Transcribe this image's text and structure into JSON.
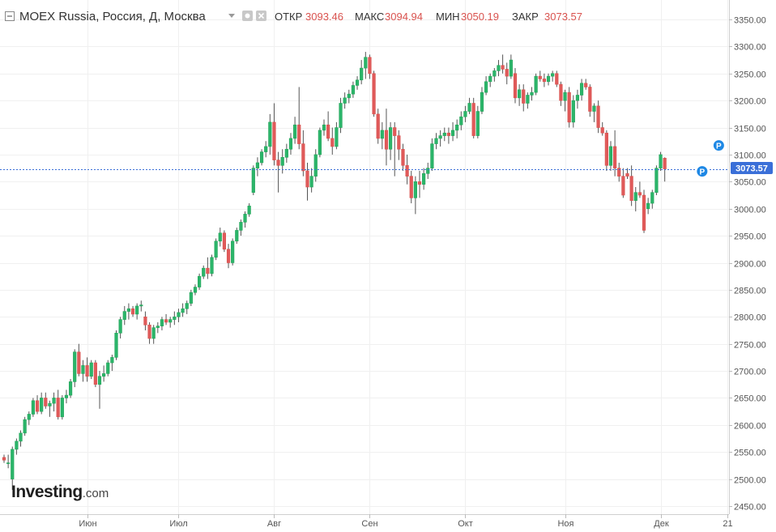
{
  "header": {
    "symbol": "MOEX Russia, Россия, Д, Москва",
    "ohlc": [
      {
        "label": "ОТКР",
        "value": "3093.46"
      },
      {
        "label": "МАКС",
        "value": "3094.94"
      },
      {
        "label": "МИН",
        "value": "3050.19"
      },
      {
        "label": "ЗАКР",
        "value": "3073.57"
      }
    ]
  },
  "logo": {
    "main": "Investing",
    "suffix": ".com"
  },
  "last_price_label": "3073.57",
  "marker_letter": "P",
  "colors": {
    "up": "#26a65b",
    "down": "#d9534f",
    "up_fill": "#2bb56a",
    "down_fill": "#e05a5a",
    "last_line": "#3a6fd8",
    "grid": "#f0f0f0",
    "axis_text": "#555555",
    "marker": "#1e88e5"
  },
  "chart_data": {
    "type": "candlestick",
    "ylim": [
      2440,
      3370
    ],
    "y_ticks": [
      "3350.00",
      "3300.00",
      "3250.00",
      "3200.00",
      "3150.00",
      "3100.00",
      "3050.00",
      "3000.00",
      "2950.00",
      "2900.00",
      "2850.00",
      "2800.00",
      "2750.00",
      "2700.00",
      "2650.00",
      "2600.00",
      "2550.00",
      "2500.00",
      "2450.00"
    ],
    "y_tick_values": [
      3350,
      3300,
      3250,
      3200,
      3150,
      3100,
      3050,
      3000,
      2950,
      2900,
      2850,
      2800,
      2750,
      2700,
      2650,
      2600,
      2550,
      2500,
      2450
    ],
    "x_ticks": [
      {
        "label": "Июн",
        "index": 20
      },
      {
        "label": "Июл",
        "index": 42
      },
      {
        "label": "Авг",
        "index": 65
      },
      {
        "label": "Сен",
        "index": 88
      },
      {
        "label": "Окт",
        "index": 111
      },
      {
        "label": "Ноя",
        "index": 135
      },
      {
        "label": "Дек",
        "index": 158
      },
      {
        "label": "21",
        "index": 174
      }
    ],
    "last_price": 3073.57,
    "markers": [
      {
        "index": 168,
        "price": 3069
      },
      {
        "index": 172,
        "price": 3117
      }
    ],
    "ohlc": [
      [
        2540,
        2545,
        2530,
        2535
      ],
      [
        2530,
        2545,
        2520,
        2530
      ],
      [
        2500,
        2560,
        2480,
        2555
      ],
      [
        2555,
        2575,
        2545,
        2570
      ],
      [
        2570,
        2590,
        2560,
        2585
      ],
      [
        2585,
        2615,
        2580,
        2610
      ],
      [
        2610,
        2625,
        2600,
        2620
      ],
      [
        2620,
        2650,
        2615,
        2645
      ],
      [
        2645,
        2655,
        2620,
        2625
      ],
      [
        2625,
        2660,
        2620,
        2650
      ],
      [
        2650,
        2660,
        2630,
        2635
      ],
      [
        2635,
        2645,
        2615,
        2640
      ],
      [
        2640,
        2660,
        2625,
        2650
      ],
      [
        2650,
        2665,
        2610,
        2615
      ],
      [
        2615,
        2655,
        2610,
        2650
      ],
      [
        2650,
        2665,
        2640,
        2655
      ],
      [
        2655,
        2685,
        2650,
        2680
      ],
      [
        2680,
        2740,
        2670,
        2735
      ],
      [
        2735,
        2750,
        2690,
        2695
      ],
      [
        2695,
        2720,
        2680,
        2710
      ],
      [
        2710,
        2725,
        2680,
        2690
      ],
      [
        2690,
        2720,
        2685,
        2715
      ],
      [
        2715,
        2720,
        2670,
        2675
      ],
      [
        2675,
        2700,
        2630,
        2690
      ],
      [
        2690,
        2710,
        2680,
        2695
      ],
      [
        2695,
        2720,
        2690,
        2715
      ],
      [
        2715,
        2730,
        2700,
        2725
      ],
      [
        2725,
        2775,
        2720,
        2770
      ],
      [
        2770,
        2800,
        2760,
        2795
      ],
      [
        2795,
        2820,
        2785,
        2810
      ],
      [
        2810,
        2825,
        2795,
        2815
      ],
      [
        2815,
        2820,
        2800,
        2805
      ],
      [
        2805,
        2825,
        2795,
        2820
      ],
      [
        2820,
        2830,
        2810,
        2822
      ],
      [
        2800,
        2810,
        2775,
        2785
      ],
      [
        2785,
        2790,
        2750,
        2760
      ],
      [
        2760,
        2785,
        2750,
        2780
      ],
      [
        2780,
        2790,
        2770,
        2783
      ],
      [
        2783,
        2800,
        2775,
        2795
      ],
      [
        2795,
        2805,
        2785,
        2790
      ],
      [
        2790,
        2800,
        2780,
        2795
      ],
      [
        2795,
        2810,
        2785,
        2800
      ],
      [
        2800,
        2815,
        2790,
        2808
      ],
      [
        2808,
        2825,
        2800,
        2815
      ],
      [
        2815,
        2830,
        2805,
        2825
      ],
      [
        2825,
        2850,
        2820,
        2845
      ],
      [
        2845,
        2860,
        2840,
        2855
      ],
      [
        2855,
        2880,
        2850,
        2875
      ],
      [
        2875,
        2895,
        2870,
        2890
      ],
      [
        2890,
        2910,
        2870,
        2880
      ],
      [
        2880,
        2915,
        2875,
        2910
      ],
      [
        2910,
        2945,
        2905,
        2940
      ],
      [
        2940,
        2965,
        2930,
        2955
      ],
      [
        2955,
        2960,
        2920,
        2925
      ],
      [
        2925,
        2935,
        2890,
        2900
      ],
      [
        2900,
        2945,
        2895,
        2940
      ],
      [
        2940,
        2965,
        2935,
        2960
      ],
      [
        2960,
        2980,
        2950,
        2975
      ],
      [
        2975,
        2995,
        2965,
        2990
      ],
      [
        2990,
        3010,
        2985,
        3005
      ],
      [
        3030,
        3080,
        3025,
        3075
      ],
      [
        3075,
        3095,
        3060,
        3085
      ],
      [
        3085,
        3110,
        3080,
        3105
      ],
      [
        3105,
        3125,
        3095,
        3115
      ],
      [
        3115,
        3175,
        3100,
        3160
      ],
      [
        3160,
        3195,
        3080,
        3090
      ],
      [
        3090,
        3105,
        3030,
        3080
      ],
      [
        3080,
        3110,
        3065,
        3095
      ],
      [
        3095,
        3120,
        3085,
        3110
      ],
      [
        3110,
        3140,
        3100,
        3130
      ],
      [
        3130,
        3170,
        3120,
        3155
      ],
      [
        3155,
        3225,
        3110,
        3120
      ],
      [
        3120,
        3145,
        3060,
        3070
      ],
      [
        3070,
        3085,
        3015,
        3040
      ],
      [
        3040,
        3075,
        3030,
        3060
      ],
      [
        3060,
        3110,
        3050,
        3100
      ],
      [
        3100,
        3150,
        3095,
        3145
      ],
      [
        3145,
        3165,
        3135,
        3155
      ],
      [
        3155,
        3180,
        3125,
        3130
      ],
      [
        3130,
        3150,
        3100,
        3115
      ],
      [
        3115,
        3160,
        3110,
        3150
      ],
      [
        3150,
        3205,
        3140,
        3195
      ],
      [
        3195,
        3215,
        3185,
        3205
      ],
      [
        3205,
        3220,
        3195,
        3212
      ],
      [
        3212,
        3235,
        3205,
        3228
      ],
      [
        3228,
        3245,
        3220,
        3238
      ],
      [
        3238,
        3275,
        3230,
        3260
      ],
      [
        3260,
        3290,
        3240,
        3280
      ],
      [
        3280,
        3285,
        3240,
        3250
      ],
      [
        3250,
        3255,
        3170,
        3175
      ],
      [
        3175,
        3185,
        3120,
        3130
      ],
      [
        3130,
        3160,
        3110,
        3145
      ],
      [
        3145,
        3185,
        3080,
        3110
      ],
      [
        3110,
        3160,
        3090,
        3150
      ],
      [
        3150,
        3160,
        3060,
        3135
      ],
      [
        3135,
        3145,
        3090,
        3110
      ],
      [
        3110,
        3120,
        3070,
        3080
      ],
      [
        3080,
        3100,
        3045,
        3060
      ],
      [
        3060,
        3070,
        3010,
        3020
      ],
      [
        3020,
        3060,
        2990,
        3050
      ],
      [
        3050,
        3070,
        3020,
        3045
      ],
      [
        3045,
        3075,
        3035,
        3065
      ],
      [
        3065,
        3085,
        3055,
        3075
      ],
      [
        3075,
        3130,
        3070,
        3120
      ],
      [
        3120,
        3140,
        3110,
        3130
      ],
      [
        3130,
        3145,
        3115,
        3135
      ],
      [
        3135,
        3150,
        3125,
        3140
      ],
      [
        3140,
        3150,
        3120,
        3135
      ],
      [
        3135,
        3160,
        3125,
        3145
      ],
      [
        3145,
        3165,
        3130,
        3155
      ],
      [
        3155,
        3180,
        3145,
        3170
      ],
      [
        3170,
        3190,
        3160,
        3180
      ],
      [
        3180,
        3205,
        3175,
        3195
      ],
      [
        3195,
        3205,
        3130,
        3135
      ],
      [
        3135,
        3190,
        3130,
        3180
      ],
      [
        3180,
        3225,
        3175,
        3215
      ],
      [
        3215,
        3245,
        3210,
        3235
      ],
      [
        3235,
        3250,
        3225,
        3245
      ],
      [
        3245,
        3260,
        3235,
        3255
      ],
      [
        3255,
        3275,
        3245,
        3265
      ],
      [
        3265,
        3285,
        3250,
        3258
      ],
      [
        3258,
        3270,
        3230,
        3245
      ],
      [
        3245,
        3285,
        3240,
        3275
      ],
      [
        3250,
        3260,
        3195,
        3205
      ],
      [
        3205,
        3230,
        3190,
        3220
      ],
      [
        3220,
        3230,
        3180,
        3195
      ],
      [
        3195,
        3215,
        3185,
        3210
      ],
      [
        3210,
        3225,
        3200,
        3215
      ],
      [
        3215,
        3250,
        3210,
        3245
      ],
      [
        3245,
        3255,
        3235,
        3240
      ],
      [
        3240,
        3250,
        3225,
        3235
      ],
      [
        3235,
        3250,
        3228,
        3245
      ],
      [
        3245,
        3255,
        3235,
        3250
      ],
      [
        3250,
        3255,
        3225,
        3230
      ],
      [
        3230,
        3235,
        3190,
        3200
      ],
      [
        3200,
        3220,
        3180,
        3215
      ],
      [
        3215,
        3225,
        3150,
        3160
      ],
      [
        3160,
        3210,
        3150,
        3200
      ],
      [
        3200,
        3220,
        3185,
        3210
      ],
      [
        3210,
        3240,
        3200,
        3232
      ],
      [
        3232,
        3240,
        3220,
        3225
      ],
      [
        3225,
        3230,
        3170,
        3180
      ],
      [
        3180,
        3195,
        3160,
        3190
      ],
      [
        3190,
        3200,
        3140,
        3150
      ],
      [
        3150,
        3160,
        3135,
        3140
      ],
      [
        3140,
        3145,
        3070,
        3080
      ],
      [
        3080,
        3125,
        3070,
        3115
      ],
      [
        3115,
        3145,
        3060,
        3075
      ],
      [
        3075,
        3085,
        3050,
        3060
      ],
      [
        3060,
        3075,
        3020,
        3025
      ],
      [
        3065,
        3075,
        3055,
        3060
      ],
      [
        3060,
        3080,
        3005,
        3015
      ],
      [
        3015,
        3040,
        2995,
        3030
      ],
      [
        3030,
        3050,
        3020,
        3025
      ],
      [
        3025,
        3035,
        2955,
        2960
      ],
      [
        3000,
        3020,
        2990,
        3010
      ],
      [
        3010,
        3035,
        3000,
        3030
      ],
      [
        3030,
        3080,
        3025,
        3075
      ],
      [
        3075,
        3105,
        3070,
        3100
      ],
      [
        3093.46,
        3094.94,
        3050.19,
        3073.57
      ]
    ]
  }
}
